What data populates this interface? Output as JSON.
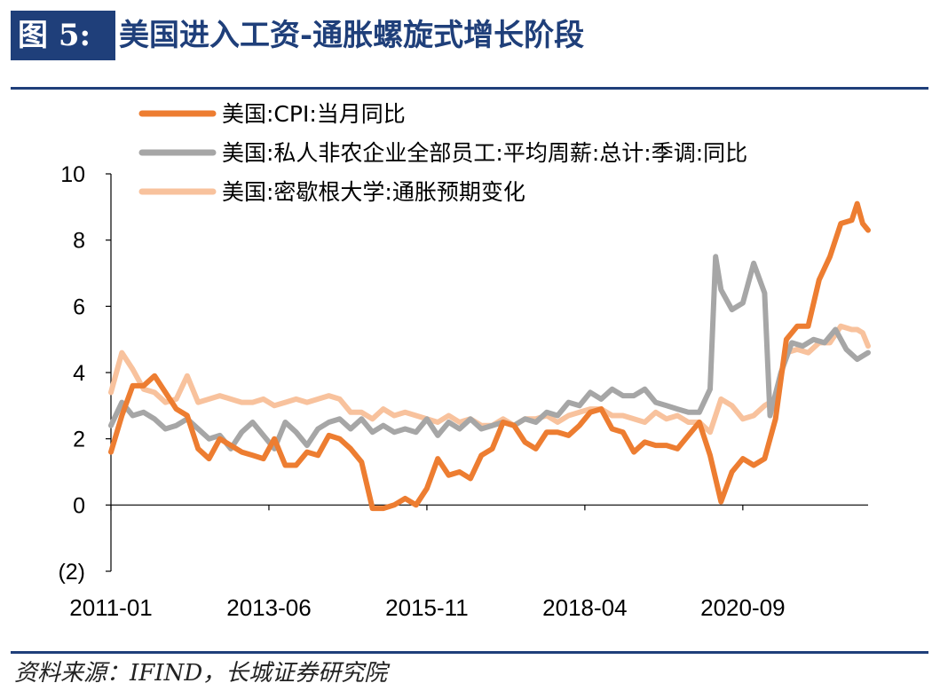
{
  "header": {
    "figure_label": "图 5:",
    "title": "美国进入工资-通胀螺旋式增长阶段"
  },
  "source": "资料来源：IFIND，长城证券研究院",
  "chart_data": {
    "type": "line",
    "title": "美国进入工资-通胀螺旋式增长阶段",
    "xlabel": "",
    "ylabel": "",
    "ylim": [
      -2,
      10
    ],
    "yticks": [
      -2,
      0,
      2,
      4,
      6,
      8,
      10
    ],
    "ytick_labels": [
      "(2)",
      "0",
      "2",
      "4",
      "6",
      "8",
      "10"
    ],
    "negative_tick_color": "#e0001b",
    "xlim": [
      "2011-01",
      "2022-08"
    ],
    "xtick_labels": [
      "2011-01",
      "2013-06",
      "2015-11",
      "2018-04",
      "2020-09"
    ],
    "legend_position": "top",
    "grid": false,
    "series": [
      {
        "name": "美国:CPI:当月同比",
        "color": "#ed7d31",
        "points": [
          [
            "2011-01",
            1.6
          ],
          [
            "2011-03",
            2.7
          ],
          [
            "2011-05",
            3.6
          ],
          [
            "2011-07",
            3.6
          ],
          [
            "2011-09",
            3.9
          ],
          [
            "2011-11",
            3.4
          ],
          [
            "2012-01",
            2.9
          ],
          [
            "2012-03",
            2.7
          ],
          [
            "2012-05",
            1.7
          ],
          [
            "2012-07",
            1.4
          ],
          [
            "2012-09",
            2.0
          ],
          [
            "2012-11",
            1.8
          ],
          [
            "2013-01",
            1.6
          ],
          [
            "2013-03",
            1.5
          ],
          [
            "2013-05",
            1.4
          ],
          [
            "2013-07",
            2.0
          ],
          [
            "2013-09",
            1.2
          ],
          [
            "2013-11",
            1.2
          ],
          [
            "2014-01",
            1.6
          ],
          [
            "2014-03",
            1.5
          ],
          [
            "2014-05",
            2.1
          ],
          [
            "2014-07",
            2.0
          ],
          [
            "2014-09",
            1.7
          ],
          [
            "2014-11",
            1.3
          ],
          [
            "2015-01",
            -0.1
          ],
          [
            "2015-03",
            -0.1
          ],
          [
            "2015-05",
            0.0
          ],
          [
            "2015-07",
            0.2
          ],
          [
            "2015-09",
            0.0
          ],
          [
            "2015-11",
            0.5
          ],
          [
            "2016-01",
            1.4
          ],
          [
            "2016-03",
            0.9
          ],
          [
            "2016-05",
            1.0
          ],
          [
            "2016-07",
            0.8
          ],
          [
            "2016-09",
            1.5
          ],
          [
            "2016-11",
            1.7
          ],
          [
            "2017-01",
            2.5
          ],
          [
            "2017-03",
            2.4
          ],
          [
            "2017-05",
            1.9
          ],
          [
            "2017-07",
            1.7
          ],
          [
            "2017-09",
            2.2
          ],
          [
            "2017-11",
            2.2
          ],
          [
            "2018-01",
            2.1
          ],
          [
            "2018-03",
            2.4
          ],
          [
            "2018-05",
            2.8
          ],
          [
            "2018-07",
            2.9
          ],
          [
            "2018-09",
            2.3
          ],
          [
            "2018-11",
            2.2
          ],
          [
            "2019-01",
            1.6
          ],
          [
            "2019-03",
            1.9
          ],
          [
            "2019-05",
            1.8
          ],
          [
            "2019-07",
            1.8
          ],
          [
            "2019-09",
            1.7
          ],
          [
            "2019-11",
            2.1
          ],
          [
            "2020-01",
            2.5
          ],
          [
            "2020-03",
            1.5
          ],
          [
            "2020-05",
            0.1
          ],
          [
            "2020-07",
            1.0
          ],
          [
            "2020-09",
            1.4
          ],
          [
            "2020-11",
            1.2
          ],
          [
            "2021-01",
            1.4
          ],
          [
            "2021-03",
            2.6
          ],
          [
            "2021-05",
            5.0
          ],
          [
            "2021-07",
            5.4
          ],
          [
            "2021-09",
            5.4
          ],
          [
            "2021-11",
            6.8
          ],
          [
            "2022-01",
            7.5
          ],
          [
            "2022-03",
            8.5
          ],
          [
            "2022-05",
            8.6
          ],
          [
            "2022-06",
            9.1
          ],
          [
            "2022-07",
            8.5
          ],
          [
            "2022-08",
            8.3
          ]
        ]
      },
      {
        "name": "美国:私人非农企业全部员工:平均周薪:总计:季调:同比",
        "color": "#a6a6a6",
        "points": [
          [
            "2011-01",
            2.4
          ],
          [
            "2011-03",
            3.1
          ],
          [
            "2011-05",
            2.7
          ],
          [
            "2011-07",
            2.8
          ],
          [
            "2011-09",
            2.6
          ],
          [
            "2011-11",
            2.3
          ],
          [
            "2012-01",
            2.4
          ],
          [
            "2012-03",
            2.6
          ],
          [
            "2012-05",
            2.3
          ],
          [
            "2012-07",
            2.0
          ],
          [
            "2012-09",
            2.1
          ],
          [
            "2012-11",
            1.7
          ],
          [
            "2013-01",
            2.2
          ],
          [
            "2013-03",
            2.5
          ],
          [
            "2013-05",
            2.1
          ],
          [
            "2013-07",
            1.7
          ],
          [
            "2013-09",
            2.5
          ],
          [
            "2013-11",
            2.2
          ],
          [
            "2014-01",
            1.8
          ],
          [
            "2014-03",
            2.3
          ],
          [
            "2014-05",
            2.5
          ],
          [
            "2014-07",
            2.6
          ],
          [
            "2014-09",
            2.3
          ],
          [
            "2014-11",
            2.6
          ],
          [
            "2015-01",
            2.2
          ],
          [
            "2015-03",
            2.4
          ],
          [
            "2015-05",
            2.2
          ],
          [
            "2015-07",
            2.3
          ],
          [
            "2015-09",
            2.2
          ],
          [
            "2015-11",
            2.6
          ],
          [
            "2016-01",
            2.1
          ],
          [
            "2016-03",
            2.5
          ],
          [
            "2016-05",
            2.3
          ],
          [
            "2016-07",
            2.6
          ],
          [
            "2016-09",
            2.3
          ],
          [
            "2016-11",
            2.4
          ],
          [
            "2017-01",
            2.5
          ],
          [
            "2017-03",
            2.4
          ],
          [
            "2017-05",
            2.6
          ],
          [
            "2017-07",
            2.5
          ],
          [
            "2017-09",
            2.8
          ],
          [
            "2017-11",
            2.7
          ],
          [
            "2018-01",
            3.1
          ],
          [
            "2018-03",
            3.0
          ],
          [
            "2018-05",
            3.4
          ],
          [
            "2018-07",
            3.2
          ],
          [
            "2018-09",
            3.5
          ],
          [
            "2018-11",
            3.3
          ],
          [
            "2019-01",
            3.3
          ],
          [
            "2019-03",
            3.5
          ],
          [
            "2019-05",
            3.1
          ],
          [
            "2019-07",
            3.0
          ],
          [
            "2019-09",
            2.9
          ],
          [
            "2019-11",
            2.8
          ],
          [
            "2020-01",
            2.8
          ],
          [
            "2020-03",
            3.5
          ],
          [
            "2020-04",
            7.5
          ],
          [
            "2020-05",
            6.5
          ],
          [
            "2020-07",
            5.9
          ],
          [
            "2020-09",
            6.1
          ],
          [
            "2020-11",
            7.3
          ],
          [
            "2021-01",
            6.4
          ],
          [
            "2021-02",
            2.7
          ],
          [
            "2021-04",
            4.0
          ],
          [
            "2021-06",
            4.9
          ],
          [
            "2021-08",
            4.8
          ],
          [
            "2021-10",
            5.0
          ],
          [
            "2021-12",
            4.9
          ],
          [
            "2022-02",
            5.3
          ],
          [
            "2022-04",
            4.7
          ],
          [
            "2022-06",
            4.4
          ],
          [
            "2022-08",
            4.6
          ]
        ]
      },
      {
        "name": "美国:密歇根大学:通胀预期变化",
        "color": "#f8c29d",
        "points": [
          [
            "2011-01",
            3.4
          ],
          [
            "2011-03",
            4.6
          ],
          [
            "2011-05",
            4.1
          ],
          [
            "2011-07",
            3.5
          ],
          [
            "2011-09",
            3.4
          ],
          [
            "2011-11",
            3.1
          ],
          [
            "2012-01",
            3.2
          ],
          [
            "2012-03",
            3.9
          ],
          [
            "2012-05",
            3.1
          ],
          [
            "2012-07",
            3.2
          ],
          [
            "2012-09",
            3.3
          ],
          [
            "2012-11",
            3.2
          ],
          [
            "2013-01",
            3.1
          ],
          [
            "2013-03",
            3.1
          ],
          [
            "2013-05",
            3.2
          ],
          [
            "2013-07",
            3.0
          ],
          [
            "2013-09",
            3.1
          ],
          [
            "2013-11",
            3.2
          ],
          [
            "2014-01",
            3.1
          ],
          [
            "2014-03",
            3.2
          ],
          [
            "2014-05",
            3.3
          ],
          [
            "2014-07",
            3.2
          ],
          [
            "2014-09",
            2.8
          ],
          [
            "2014-11",
            2.8
          ],
          [
            "2015-01",
            2.6
          ],
          [
            "2015-03",
            2.9
          ],
          [
            "2015-05",
            2.7
          ],
          [
            "2015-07",
            2.8
          ],
          [
            "2015-09",
            2.7
          ],
          [
            "2015-11",
            2.6
          ],
          [
            "2016-01",
            2.5
          ],
          [
            "2016-03",
            2.7
          ],
          [
            "2016-05",
            2.5
          ],
          [
            "2016-07",
            2.6
          ],
          [
            "2016-09",
            2.4
          ],
          [
            "2016-11",
            2.4
          ],
          [
            "2017-01",
            2.6
          ],
          [
            "2017-03",
            2.4
          ],
          [
            "2017-05",
            2.6
          ],
          [
            "2017-07",
            2.6
          ],
          [
            "2017-09",
            2.7
          ],
          [
            "2017-11",
            2.5
          ],
          [
            "2018-01",
            2.7
          ],
          [
            "2018-03",
            2.8
          ],
          [
            "2018-05",
            2.9
          ],
          [
            "2018-07",
            2.9
          ],
          [
            "2018-09",
            2.7
          ],
          [
            "2018-11",
            2.7
          ],
          [
            "2019-01",
            2.6
          ],
          [
            "2019-03",
            2.5
          ],
          [
            "2019-05",
            2.8
          ],
          [
            "2019-07",
            2.6
          ],
          [
            "2019-09",
            2.7
          ],
          [
            "2019-11",
            2.5
          ],
          [
            "2020-01",
            2.5
          ],
          [
            "2020-03",
            2.2
          ],
          [
            "2020-05",
            3.2
          ],
          [
            "2020-07",
            3.0
          ],
          [
            "2020-09",
            2.6
          ],
          [
            "2020-11",
            2.7
          ],
          [
            "2021-01",
            3.0
          ],
          [
            "2021-03",
            3.2
          ],
          [
            "2021-05",
            4.6
          ],
          [
            "2021-07",
            4.7
          ],
          [
            "2021-09",
            4.6
          ],
          [
            "2021-11",
            4.9
          ],
          [
            "2022-01",
            4.9
          ],
          [
            "2022-03",
            5.4
          ],
          [
            "2022-05",
            5.3
          ],
          [
            "2022-06",
            5.3
          ],
          [
            "2022-07",
            5.2
          ],
          [
            "2022-08",
            4.8
          ]
        ]
      }
    ]
  }
}
